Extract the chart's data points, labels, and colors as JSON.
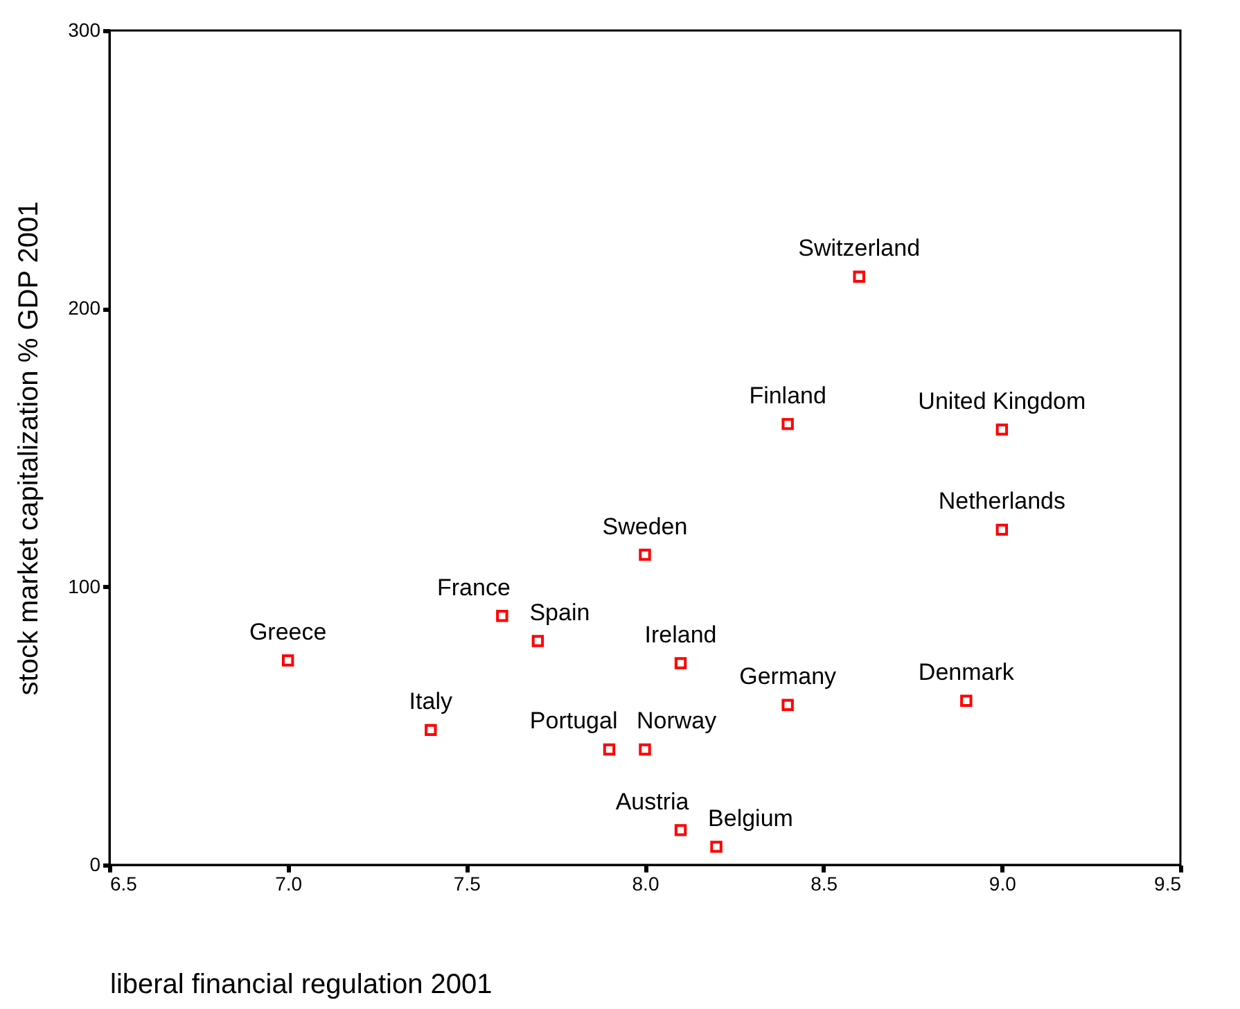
{
  "chart_data": {
    "type": "scatter",
    "xlabel": "liberal financial regulation 2001",
    "ylabel": "stock market capitalization % GDP 2001",
    "x": [
      8.6,
      8.4,
      9.0,
      9.0,
      8.0,
      7.6,
      7.7,
      7.0,
      8.1,
      8.4,
      8.9,
      7.4,
      7.9,
      8.0,
      8.1,
      8.2
    ],
    "series": [
      {
        "color": "#ff0000",
        "values": [
          211.5,
          158.5,
          156.5,
          120.5,
          111.5,
          89.5,
          80.5,
          73.5,
          72.5,
          57.5,
          59,
          48.5,
          41.5,
          41.5,
          12.5,
          6.5
        ]
      }
    ],
    "annotations": [
      {
        "text": "Switzerland",
        "x": 8.6,
        "y": 211.5
      },
      {
        "text": "Finland",
        "x": 8.4,
        "y": 158.5
      },
      {
        "text": "United Kingdom",
        "x": 9.0,
        "y": 156.5
      },
      {
        "text": "Netherlands",
        "x": 9.0,
        "y": 120.5
      },
      {
        "text": "Sweden",
        "x": 8.0,
        "y": 111.5
      },
      {
        "text": "France",
        "x": 7.6,
        "y": 89.5
      },
      {
        "text": "Spain",
        "x": 7.7,
        "y": 80.5
      },
      {
        "text": "Greece",
        "x": 7.0,
        "y": 73.5
      },
      {
        "text": "Ireland",
        "x": 8.1,
        "y": 72.5
      },
      {
        "text": "Germany",
        "x": 8.4,
        "y": 57.5
      },
      {
        "text": "Denmark",
        "x": 8.9,
        "y": 59
      },
      {
        "text": "Italy",
        "x": 7.4,
        "y": 48.5
      },
      {
        "text": "Portugal",
        "x": 7.9,
        "y": 41.5
      },
      {
        "text": "Norway",
        "x": 8.0,
        "y": 41.5
      },
      {
        "text": "Austria",
        "x": 8.1,
        "y": 12.5
      },
      {
        "text": "Belgium",
        "x": 8.2,
        "y": 6.5
      }
    ],
    "xlim": [
      6.5,
      9.5
    ],
    "ylim": [
      0,
      300
    ],
    "xticks": [
      6.5,
      {
        "value": 7,
        "label": "7.0"
      },
      7.5,
      {
        "value": 8,
        "label": "8.0"
      },
      8.5,
      {
        "value": 9,
        "label": "9.0"
      },
      9.5
    ],
    "yticks": [
      0,
      100,
      200,
      300
    ],
    "marker": "square",
    "grid": false
  }
}
